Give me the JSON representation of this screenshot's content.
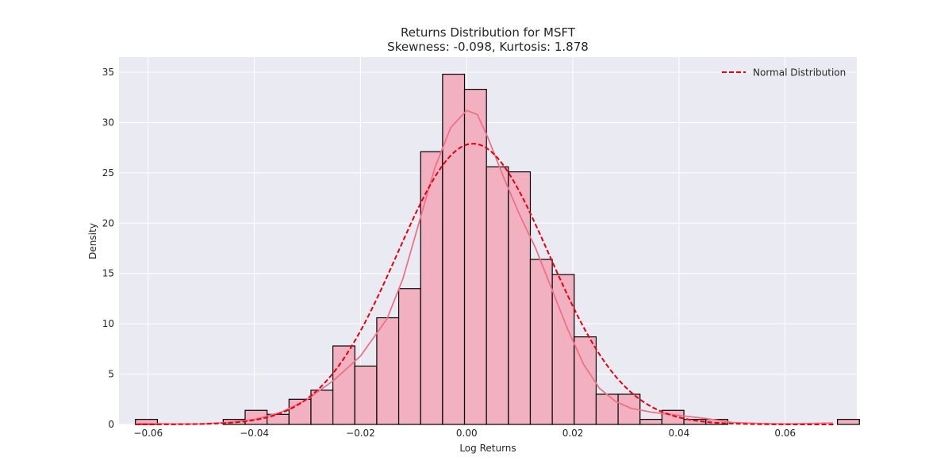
{
  "chart_data": {
    "type": "bar",
    "title": "Returns Distribution for MSFT",
    "subtitle": "Skewness: -0.098, Kurtosis: 1.878",
    "xlabel": "Log Returns",
    "ylabel": "Density",
    "xlim": [
      -0.0655,
      0.0735
    ],
    "ylim": [
      0,
      36.5
    ],
    "x_ticks": [
      -0.06,
      -0.04,
      -0.02,
      0.0,
      0.02,
      0.04,
      0.06
    ],
    "x_tick_labels": [
      "−0.06",
      "−0.04",
      "−0.02",
      "0.00",
      "0.02",
      "0.04",
      "0.06"
    ],
    "y_ticks": [
      0,
      5,
      10,
      15,
      20,
      25,
      30,
      35
    ],
    "y_tick_labels": [
      "0",
      "5",
      "10",
      "15",
      "20",
      "25",
      "30",
      "35"
    ],
    "grid": true,
    "legend_position": "top-right",
    "bins": {
      "start": -0.0624,
      "width": 0.004133,
      "values": [
        0.5,
        0,
        0,
        0,
        0.5,
        1.4,
        1.0,
        2.5,
        3.4,
        7.8,
        5.8,
        10.6,
        13.5,
        27.1,
        34.8,
        33.3,
        25.6,
        25.1,
        16.4,
        14.9,
        8.7,
        3.0,
        3.0,
        0.5,
        1.4,
        0.5,
        0.5,
        0,
        0,
        0,
        0,
        0,
        0.5
      ]
    },
    "series": [
      {
        "name": "Normal Distribution",
        "kind": "normal-pdf",
        "mean": 0.0012,
        "std": 0.0143,
        "color": "#e8000b",
        "dashed": true
      },
      {
        "kind": "kde",
        "color": "#f07187",
        "x": [
          -0.062,
          -0.055,
          -0.05,
          -0.045,
          -0.04,
          -0.035,
          -0.03,
          -0.025,
          -0.02,
          -0.015,
          -0.012,
          -0.009,
          -0.006,
          -0.003,
          0.0,
          0.002,
          0.004,
          0.007,
          0.01,
          0.013,
          0.016,
          0.019,
          0.022,
          0.025,
          0.028,
          0.031,
          0.035,
          0.04,
          0.045,
          0.05,
          0.055,
          0.06,
          0.065,
          0.069
        ],
        "y": [
          0.1,
          0.05,
          0.05,
          0.2,
          0.5,
          1.2,
          2.5,
          4.4,
          6.8,
          10.5,
          14.5,
          20.0,
          25.5,
          29.5,
          31.2,
          30.8,
          28.5,
          24.5,
          20.8,
          17.5,
          13.5,
          9.5,
          6.0,
          3.6,
          2.3,
          1.6,
          1.2,
          0.9,
          0.6,
          0.2,
          0.1,
          0.05,
          0.1,
          0.15
        ]
      }
    ],
    "colors": {
      "plot_bg": "#eaeaf2",
      "grid": "#ffffff",
      "bar_fill": "#f2b1c0",
      "bar_edge": "#000000",
      "kde": "#f07187",
      "normal": "#e8000b"
    }
  }
}
